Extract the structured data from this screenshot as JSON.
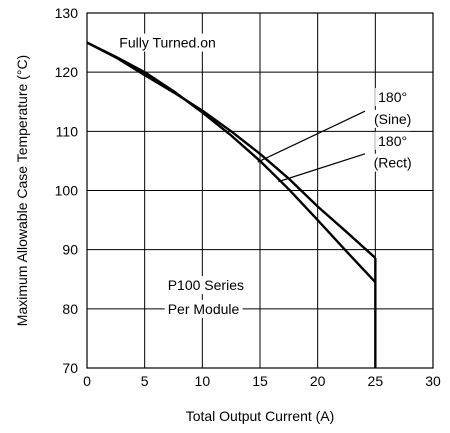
{
  "chart_data": {
    "type": "line",
    "title": "",
    "xlabel": "Total Output Current (A)",
    "ylabel": "Maximum Allowable Case Temperature (°C)",
    "xlim": [
      0,
      30
    ],
    "ylim": [
      70,
      130
    ],
    "xticks": [
      0,
      5,
      10,
      15,
      20,
      25,
      30
    ],
    "yticks": [
      70,
      80,
      90,
      100,
      110,
      120,
      130
    ],
    "grid": true,
    "series": [
      {
        "name": "180° (Sine)",
        "x": [
          0,
          2.5,
          5,
          7.5,
          10,
          12.5,
          15,
          17.5,
          20,
          22.5,
          25
        ],
        "y": [
          125,
          122.6,
          120,
          116.8,
          113.2,
          109.3,
          105,
          100.2,
          95,
          89.7,
          84.5
        ]
      },
      {
        "name": "180° (Rect)",
        "x": [
          0,
          2.5,
          5,
          7.5,
          10,
          12.5,
          15,
          17.5,
          20,
          22.5,
          25
        ],
        "y": [
          125,
          122.5,
          119.5,
          116.6,
          113.5,
          110,
          106.2,
          102,
          97.3,
          93,
          88.6
        ]
      }
    ],
    "annotations": [
      {
        "text": "Fully Turned.on",
        "x": 2.8,
        "y": 125
      },
      {
        "text": "180°",
        "x": 26.5,
        "y": 115.8
      },
      {
        "text": "(Sine)",
        "x": 26.5,
        "y": 112.1
      },
      {
        "text": "180°",
        "x": 26.5,
        "y": 108.4
      },
      {
        "text": "(Rect)",
        "x": 26.5,
        "y": 104.7
      },
      {
        "text": "P100 Series",
        "x": 7,
        "y": 84
      },
      {
        "text": "Per Module",
        "x": 7,
        "y": 80
      }
    ]
  }
}
